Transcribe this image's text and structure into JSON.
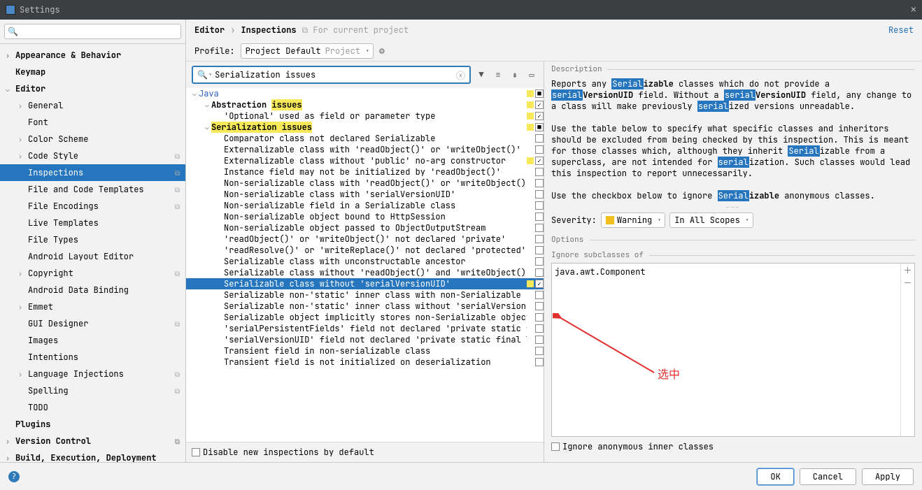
{
  "window": {
    "title": "Settings"
  },
  "sidebar": {
    "search_placeholder": "",
    "items": [
      {
        "label": "Appearance & Behavior",
        "chev": "›",
        "bold": true,
        "indent": 0
      },
      {
        "label": "Keymap",
        "chev": "",
        "bold": true,
        "indent": 0
      },
      {
        "label": "Editor",
        "chev": "⌄",
        "bold": true,
        "indent": 0
      },
      {
        "label": "General",
        "chev": "›",
        "indent": 1
      },
      {
        "label": "Font",
        "chev": "",
        "indent": 1
      },
      {
        "label": "Color Scheme",
        "chev": "›",
        "indent": 1
      },
      {
        "label": "Code Style",
        "chev": "›",
        "indent": 1,
        "badge": "⧉"
      },
      {
        "label": "Inspections",
        "chev": "",
        "indent": 1,
        "selected": true,
        "badge": "⧉"
      },
      {
        "label": "File and Code Templates",
        "chev": "",
        "indent": 1,
        "badge": "⧉"
      },
      {
        "label": "File Encodings",
        "chev": "",
        "indent": 1,
        "badge": "⧉"
      },
      {
        "label": "Live Templates",
        "chev": "",
        "indent": 1
      },
      {
        "label": "File Types",
        "chev": "",
        "indent": 1
      },
      {
        "label": "Android Layout Editor",
        "chev": "",
        "indent": 1
      },
      {
        "label": "Copyright",
        "chev": "›",
        "indent": 1,
        "badge": "⧉"
      },
      {
        "label": "Android Data Binding",
        "chev": "",
        "indent": 1
      },
      {
        "label": "Emmet",
        "chev": "›",
        "indent": 1
      },
      {
        "label": "GUI Designer",
        "chev": "",
        "indent": 1,
        "badge": "⧉"
      },
      {
        "label": "Images",
        "chev": "",
        "indent": 1
      },
      {
        "label": "Intentions",
        "chev": "",
        "indent": 1
      },
      {
        "label": "Language Injections",
        "chev": "›",
        "indent": 1,
        "badge": "⧉"
      },
      {
        "label": "Spelling",
        "chev": "",
        "indent": 1,
        "badge": "⧉"
      },
      {
        "label": "TODO",
        "chev": "",
        "indent": 1
      },
      {
        "label": "Plugins",
        "chev": "",
        "bold": true,
        "indent": 0
      },
      {
        "label": "Version Control",
        "chev": "›",
        "bold": true,
        "indent": 0,
        "badge": "⧉"
      },
      {
        "label": "Build, Execution, Deployment",
        "chev": "›",
        "bold": true,
        "indent": 0
      }
    ]
  },
  "breadcrumb": {
    "a": "Editor",
    "sep": "›",
    "b": "Inspections",
    "note": "⧉ For current project",
    "reset": "Reset"
  },
  "profile": {
    "label": "Profile:",
    "value": "Project Default",
    "scope": "Project"
  },
  "insp_search": {
    "value": "Serialization issues"
  },
  "colors": {
    "yellow": "#f7e959",
    "sel": "#2675bf",
    "warn": "#f2c01e"
  },
  "tree": [
    {
      "indent": 0,
      "chev": "⌄",
      "pre": "",
      "hl": "",
      "post": "Java",
      "link": true,
      "sq": "#f7e959",
      "cb": "■"
    },
    {
      "indent": 1,
      "chev": "⌄",
      "pre": "Abstraction ",
      "hl": "issues",
      "post": "",
      "bold": true,
      "sq": "#f7e959",
      "cb": "✓"
    },
    {
      "indent": 2,
      "chev": "",
      "pre": "'Optional' used as field or parameter type",
      "hl": "",
      "post": "",
      "sq": "#f7e959",
      "cb": "✓"
    },
    {
      "indent": 1,
      "chev": "⌄",
      "pre": "",
      "hl": "Serialization issues",
      "post": "",
      "bold": true,
      "sq": "#f7e959",
      "cb": "■"
    },
    {
      "indent": 2,
      "chev": "",
      "pre": "Comparator class not declared Serializable",
      "sq": "",
      "cb": ""
    },
    {
      "indent": 2,
      "chev": "",
      "pre": "Externalizable class with 'readObject()' or 'writeObject()'",
      "sq": "",
      "cb": ""
    },
    {
      "indent": 2,
      "chev": "",
      "pre": "Externalizable class without 'public' no-arg constructor",
      "sq": "#f7e959",
      "cb": "✓"
    },
    {
      "indent": 2,
      "chev": "",
      "pre": "Instance field may not be initialized by 'readObject()'",
      "sq": "",
      "cb": ""
    },
    {
      "indent": 2,
      "chev": "",
      "pre": "Non-serializable class with 'readObject()' or 'writeObject()'",
      "sq": "",
      "cb": ""
    },
    {
      "indent": 2,
      "chev": "",
      "pre": "Non-serializable class with 'serialVersionUID'",
      "sq": "",
      "cb": ""
    },
    {
      "indent": 2,
      "chev": "",
      "pre": "Non-serializable field in a Serializable class",
      "sq": "",
      "cb": ""
    },
    {
      "indent": 2,
      "chev": "",
      "pre": "Non-serializable object bound to HttpSession",
      "sq": "",
      "cb": ""
    },
    {
      "indent": 2,
      "chev": "",
      "pre": "Non-serializable object passed to ObjectOutputStream",
      "sq": "",
      "cb": ""
    },
    {
      "indent": 2,
      "chev": "",
      "pre": "'readObject()' or 'writeObject()' not declared 'private'",
      "sq": "",
      "cb": ""
    },
    {
      "indent": 2,
      "chev": "",
      "pre": "'readResolve()' or 'writeReplace()' not declared 'protected'",
      "sq": "",
      "cb": ""
    },
    {
      "indent": 2,
      "chev": "",
      "pre": "Serializable class with unconstructable ancestor",
      "sq": "",
      "cb": ""
    },
    {
      "indent": 2,
      "chev": "",
      "pre": "Serializable class without 'readObject()' and 'writeObject()'",
      "sq": "",
      "cb": ""
    },
    {
      "indent": 2,
      "chev": "",
      "pre": "Serializable class without 'serialVersionUID'",
      "sq": "#f7e959",
      "cb": "✓",
      "selected": true
    },
    {
      "indent": 2,
      "chev": "",
      "pre": "Serializable non-'static' inner class with non-Serializable outer class",
      "sq": "",
      "cb": ""
    },
    {
      "indent": 2,
      "chev": "",
      "pre": "Serializable non-'static' inner class without 'serialVersionUID'",
      "sq": "",
      "cb": ""
    },
    {
      "indent": 2,
      "chev": "",
      "pre": "Serializable object implicitly stores non-Serializable object",
      "sq": "",
      "cb": ""
    },
    {
      "indent": 2,
      "chev": "",
      "pre": "'serialPersistentFields' field not declared 'private static final ObjectStreamField[]'",
      "sq": "",
      "cb": ""
    },
    {
      "indent": 2,
      "chev": "",
      "pre": "'serialVersionUID' field not declared 'private static final long'",
      "sq": "",
      "cb": ""
    },
    {
      "indent": 2,
      "chev": "",
      "pre": "Transient field in non-serializable class",
      "sq": "",
      "cb": ""
    },
    {
      "indent": 2,
      "chev": "",
      "pre": "Transient field is not initialized on deserialization",
      "sq": "",
      "cb": ""
    }
  ],
  "disable_new": "Disable new inspections by default",
  "detail": {
    "desc_label": "Description",
    "p1a": "Reports any ",
    "p1h1": "Serial",
    "p1b": "izable",
    " p1c": " classes which do not provide a ",
    "p1h2": "serial",
    "p1d": "VersionUID",
    " p1e": " field. Without a ",
    "p1h3": "serial",
    "p1f": "VersionUID",
    " p1g": " field, any change to a class will make previously ",
    "p1h4": "serial",
    "p1h": "ized versions unreadable.",
    "p2a": "Use the table below to specify what specific classes and inheritors should be excluded from being checked by this inspection. This is meant for those classes which, although they inherit ",
    "p2h1": "Serial",
    "p2b": "izable from a superclass, are not intended for ",
    "p2h2": "serial",
    "p2c": "ization. Such classes would lead this inspection to report unnecessarily.",
    "p3a": "Use the checkbox below to ignore ",
    "p3h1": "Serial",
    "p3b": "izable",
    " p3c": " anonymous classes.",
    "severity_label": "Severity:",
    "severity_value": "Warning",
    "scope_value": "In All Scopes",
    "options_label": "Options",
    "ignore_label": "Ignore subclasses of",
    "ignore_item": "java.awt.Component",
    "ignore_anon": "Ignore anonymous inner classes"
  },
  "annotation": {
    "text": "选中"
  },
  "footer": {
    "ok": "OK",
    "cancel": "Cancel",
    "apply": "Apply"
  }
}
